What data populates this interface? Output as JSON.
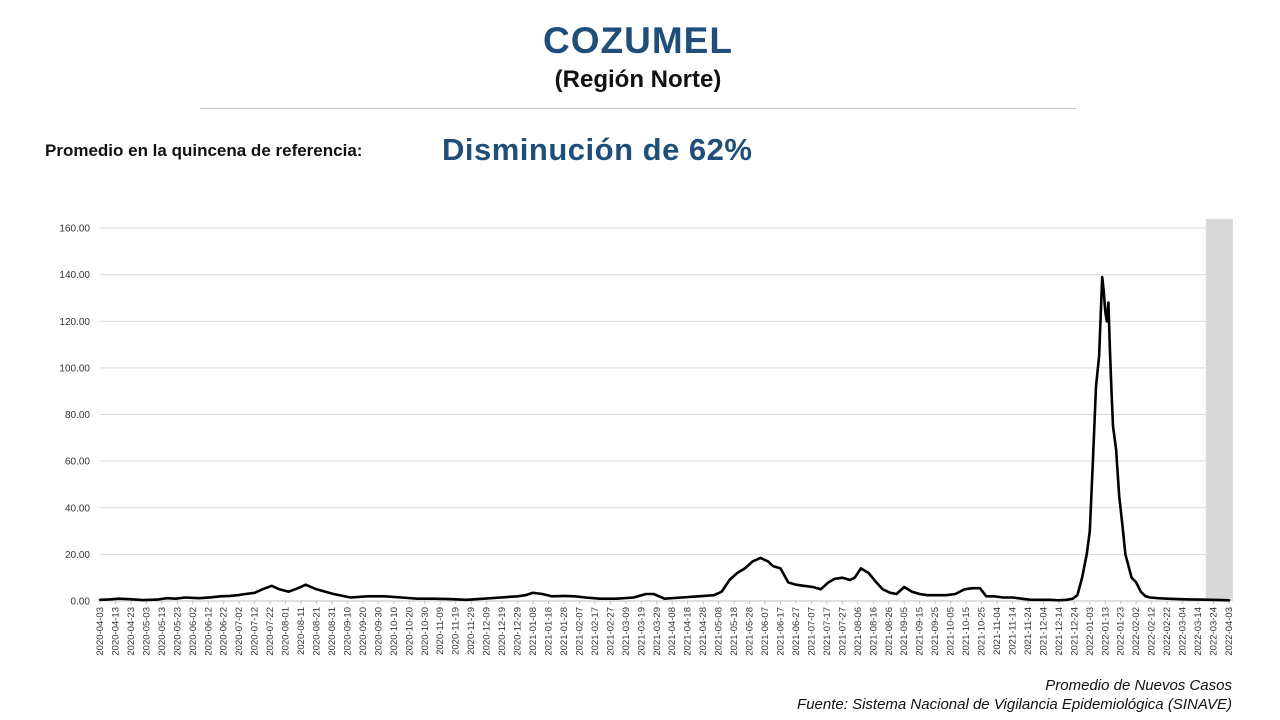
{
  "header": {
    "title": "COZUMEL",
    "subtitle": "(Región Norte)"
  },
  "reference": {
    "label": "Promedio en la quincena de referencia:",
    "value": "Disminución de 62%"
  },
  "footer": {
    "caption1": "Promedio de Nuevos Casos",
    "caption2": "Fuente: Sistema Nacional de Vigilancia Epidemiológica (SINAVE)"
  },
  "colors": {
    "title": "#1f4e79",
    "line": "#000000",
    "grid": "#d9d9d9",
    "shaded": "#d9d9d9"
  },
  "chart_data": {
    "type": "line",
    "title": "",
    "xlabel": "",
    "ylabel": "",
    "ylim": [
      0,
      160
    ],
    "yticks": [
      "0.00",
      "20.00",
      "40.00",
      "60.00",
      "80.00",
      "100.00",
      "120.00",
      "140.00",
      "160.00"
    ],
    "xlim": [
      "2020-04-03",
      "2022-04-03"
    ],
    "xticks": [
      "2020-04-03",
      "2020-04-13",
      "2020-04-23",
      "2020-05-03",
      "2020-05-13",
      "2020-05-23",
      "2020-06-02",
      "2020-06-12",
      "2020-06-22",
      "2020-07-02",
      "2020-07-12",
      "2020-07-22",
      "2020-08-01",
      "2020-08-11",
      "2020-08-21",
      "2020-08-31",
      "2020-09-10",
      "2020-09-20",
      "2020-09-30",
      "2020-10-10",
      "2020-10-20",
      "2020-10-30",
      "2020-11-09",
      "2020-11-19",
      "2020-11-29",
      "2020-12-09",
      "2020-12-19",
      "2020-12-29",
      "2021-01-08",
      "2021-01-18",
      "2021-01-28",
      "2021-02-07",
      "2021-02-17",
      "2021-02-27",
      "2021-03-09",
      "2021-03-19",
      "2021-03-29",
      "2021-04-08",
      "2021-04-18",
      "2021-04-28",
      "2021-05-08",
      "2021-05-18",
      "2021-05-28",
      "2021-06-07",
      "2021-06-17",
      "2021-06-27",
      "2021-07-07",
      "2021-07-17",
      "2021-07-27",
      "2021-08-06",
      "2021-08-16",
      "2021-08-26",
      "2021-09-05",
      "2021-09-15",
      "2021-09-25",
      "2021-10-05",
      "2021-10-15",
      "2021-10-25",
      "2021-11-04",
      "2021-11-14",
      "2021-11-24",
      "2021-12-04",
      "2021-12-14",
      "2021-12-24",
      "2022-01-03",
      "2022-01-13",
      "2022-01-23",
      "2022-02-02",
      "2022-02-12",
      "2022-02-22",
      "2022-03-04",
      "2022-03-14",
      "2022-03-24",
      "2022-04-03"
    ],
    "grid": true,
    "legend": "none",
    "shaded_region": [
      "2022-03-19",
      "2022-04-03"
    ],
    "series": [
      {
        "x": [
          "2020-04-03",
          "2020-04-09",
          "2020-04-15",
          "2020-04-21",
          "2020-05-01",
          "2020-05-10",
          "2020-05-16",
          "2020-05-22",
          "2020-05-28",
          "2020-06-06",
          "2020-06-14",
          "2020-06-20",
          "2020-06-26",
          "2020-07-01",
          "2020-07-06",
          "2020-07-12",
          "2020-07-17",
          "2020-07-23",
          "2020-07-28",
          "2020-08-03",
          "2020-08-09",
          "2020-08-14",
          "2020-08-21",
          "2020-09-01",
          "2020-09-12",
          "2020-09-23",
          "2020-10-04",
          "2020-10-15",
          "2020-10-25",
          "2020-11-04",
          "2020-11-15",
          "2020-11-26",
          "2020-12-07",
          "2020-12-18",
          "2020-12-29",
          "2021-01-03",
          "2021-01-08",
          "2021-01-14",
          "2021-01-20",
          "2021-01-28",
          "2021-02-04",
          "2021-02-11",
          "2021-02-20",
          "2021-03-03",
          "2021-03-14",
          "2021-03-22",
          "2021-03-27",
          "2021-04-03",
          "2021-04-14",
          "2021-04-25",
          "2021-05-05",
          "2021-05-10",
          "2021-05-15",
          "2021-05-20",
          "2021-05-25",
          "2021-05-30",
          "2021-06-04",
          "2021-06-09",
          "2021-06-12",
          "2021-06-17",
          "2021-06-22",
          "2021-06-27",
          "2021-07-02",
          "2021-07-08",
          "2021-07-13",
          "2021-07-18",
          "2021-07-22",
          "2021-07-27",
          "2021-08-01",
          "2021-08-04",
          "2021-08-08",
          "2021-08-13",
          "2021-08-18",
          "2021-08-22",
          "2021-08-27",
          "2021-08-31",
          "2021-09-05",
          "2021-09-10",
          "2021-09-15",
          "2021-09-20",
          "2021-09-26",
          "2021-10-02",
          "2021-10-08",
          "2021-10-14",
          "2021-10-19",
          "2021-10-24",
          "2021-10-28",
          "2021-11-02",
          "2021-11-08",
          "2021-11-14",
          "2021-11-20",
          "2021-11-26",
          "2021-12-02",
          "2021-12-08",
          "2021-12-14",
          "2021-12-19",
          "2021-12-23",
          "2021-12-26",
          "2021-12-29",
          "2022-01-01",
          "2022-01-03",
          "2022-01-05",
          "2022-01-07",
          "2022-01-09",
          "2022-01-11",
          "2022-01-12",
          "2022-01-13",
          "2022-01-14",
          "2022-01-15",
          "2022-01-16",
          "2022-01-17",
          "2022-01-18",
          "2022-01-20",
          "2022-01-22",
          "2022-01-24",
          "2022-01-26",
          "2022-01-28",
          "2022-01-30",
          "2022-02-02",
          "2022-02-05",
          "2022-02-08",
          "2022-02-11",
          "2022-02-16",
          "2022-02-22",
          "2022-03-01",
          "2022-03-08",
          "2022-03-15",
          "2022-03-22",
          "2022-03-29",
          "2022-04-03"
        ],
        "y": [
          0.5,
          0.7,
          1.0,
          0.8,
          0.4,
          0.6,
          1.2,
          1.0,
          1.5,
          1.2,
          1.6,
          2.0,
          2.2,
          2.5,
          3.0,
          3.5,
          5.0,
          6.5,
          5.0,
          4.0,
          5.5,
          7.0,
          5.0,
          3.0,
          1.5,
          2.0,
          2.0,
          1.5,
          1.0,
          1.0,
          0.8,
          0.5,
          1.0,
          1.5,
          2.0,
          2.5,
          3.5,
          3.0,
          2.0,
          2.2,
          2.0,
          1.5,
          1.0,
          1.0,
          1.5,
          3.0,
          3.0,
          1.0,
          1.5,
          2.0,
          2.5,
          4.0,
          9.0,
          12.0,
          14.0,
          17.0,
          18.5,
          17.0,
          15.0,
          14.0,
          8.0,
          7.0,
          6.5,
          6.0,
          5.0,
          8.0,
          9.5,
          10.0,
          9.0,
          10.0,
          14.0,
          12.0,
          8.0,
          5.0,
          3.5,
          3.0,
          6.0,
          4.0,
          3.0,
          2.5,
          2.5,
          2.5,
          3.0,
          5.0,
          5.5,
          5.5,
          2.0,
          2.0,
          1.5,
          1.5,
          1.0,
          0.5,
          0.5,
          0.5,
          0.3,
          0.5,
          1.0,
          2.5,
          10.0,
          20.0,
          30.0,
          60.0,
          92.0,
          105.0,
          139.0,
          133.0,
          124.0,
          120.0,
          128.0,
          108.0,
          90.0,
          75.0,
          65.0,
          45.0,
          33.0,
          20.0,
          15.0,
          10.0,
          8.0,
          4.0,
          2.0,
          1.5,
          1.2,
          1.0,
          0.8,
          0.7,
          0.6,
          0.5,
          0.4,
          0.3
        ]
      }
    ]
  }
}
